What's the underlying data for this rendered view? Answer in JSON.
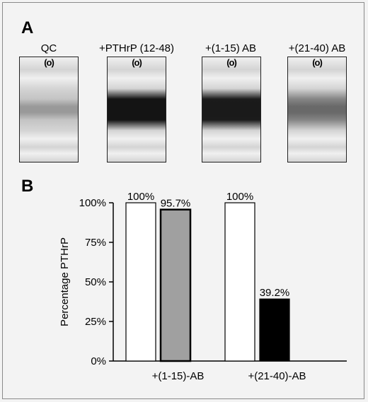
{
  "panel_a": {
    "letter": "A",
    "strips": [
      {
        "label": "QC",
        "well": "(o)",
        "intensity": 0.05
      },
      {
        "label": "+PTHrP (12-48)",
        "well": "(o)",
        "intensity": 1.0
      },
      {
        "label": "+(1-15) AB",
        "well": "(o)",
        "intensity": 0.96
      },
      {
        "label": "+(21-40) AB",
        "well": "(o)",
        "intensity": 0.39
      }
    ]
  },
  "panel_b": {
    "letter": "B"
  },
  "chart_data": {
    "type": "bar",
    "ylabel": "Percentage PTHrP",
    "ylim": [
      0,
      100
    ],
    "yticks": [
      "0%",
      "25%",
      "50%",
      "75%",
      "100%"
    ],
    "groups": [
      {
        "label": "+(1-15)-AB",
        "bars": [
          {
            "value": 100,
            "label": "100%",
            "fill": "#ffffff"
          },
          {
            "value": 95.7,
            "label": "95.7%",
            "fill": "#a0a0a0"
          }
        ]
      },
      {
        "label": "+(21-40)-AB",
        "bars": [
          {
            "value": 100,
            "label": "100%",
            "fill": "#ffffff"
          },
          {
            "value": 39.2,
            "label": "39.2%",
            "fill": "#000000"
          }
        ]
      }
    ]
  }
}
